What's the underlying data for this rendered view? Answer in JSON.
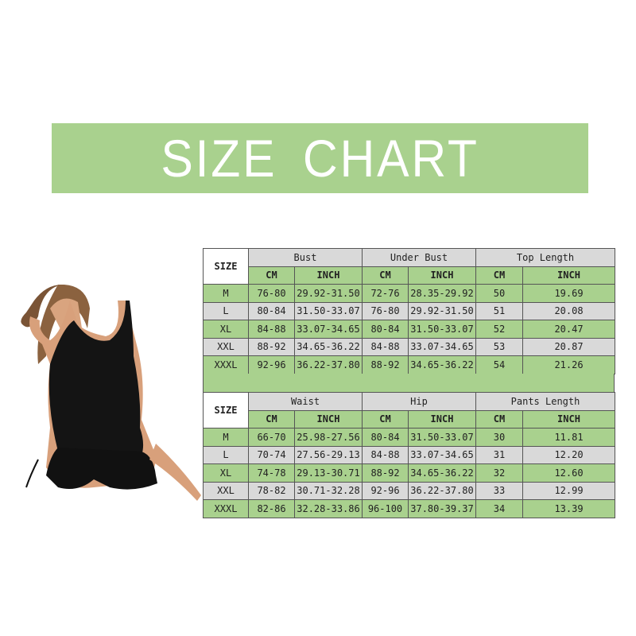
{
  "title": "SIZE CHART",
  "colors": {
    "banner": "#a9d18e",
    "row_green": "#a9d18e",
    "row_gray": "#d9d9d9"
  },
  "tables": [
    {
      "size_label": "SIZE",
      "groups": [
        "Bust",
        "Under Bust",
        "Top Length"
      ],
      "units": [
        "CM",
        "INCH",
        "CM",
        "INCH",
        "CM",
        "INCH"
      ],
      "rows": [
        [
          "M",
          "76-80",
          "29.92-31.50",
          "72-76",
          "28.35-29.92",
          "50",
          "19.69"
        ],
        [
          "L",
          "80-84",
          "31.50-33.07",
          "76-80",
          "29.92-31.50",
          "51",
          "20.08"
        ],
        [
          "XL",
          "84-88",
          "33.07-34.65",
          "80-84",
          "31.50-33.07",
          "52",
          "20.47"
        ],
        [
          "XXL",
          "88-92",
          "34.65-36.22",
          "84-88",
          "33.07-34.65",
          "53",
          "20.87"
        ],
        [
          "XXXL",
          "92-96",
          "36.22-37.80",
          "88-92",
          "34.65-36.22",
          "54",
          "21.26"
        ]
      ]
    },
    {
      "size_label": "SIZE",
      "groups": [
        "Waist",
        "Hip",
        "Pants Length"
      ],
      "units": [
        "CM",
        "INCH",
        "CM",
        "INCH",
        "CM",
        "INCH"
      ],
      "rows": [
        [
          "M",
          "66-70",
          "25.98-27.56",
          "80-84",
          "31.50-33.07",
          "30",
          "11.81"
        ],
        [
          "L",
          "70-74",
          "27.56-29.13",
          "84-88",
          "33.07-34.65",
          "31",
          "12.20"
        ],
        [
          "XL",
          "74-78",
          "29.13-30.71",
          "88-92",
          "34.65-36.22",
          "32",
          "12.60"
        ],
        [
          "XXL",
          "78-82",
          "30.71-32.28",
          "92-96",
          "36.22-37.80",
          "33",
          "12.99"
        ],
        [
          "XXXL",
          "82-86",
          "32.28-33.86",
          "96-100",
          "37.80-39.37",
          "34",
          "13.39"
        ]
      ]
    }
  ]
}
